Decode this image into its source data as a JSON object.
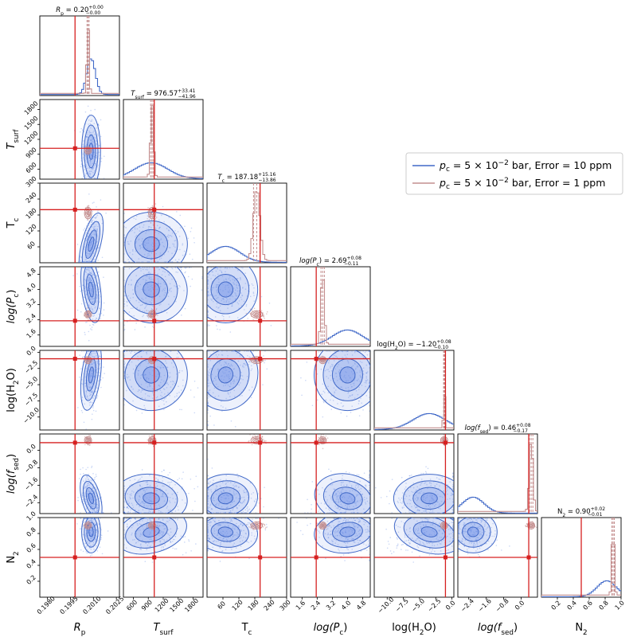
{
  "chart_data": {
    "type": "corner",
    "legend": {
      "placement": "right-upper",
      "entries": [
        {
          "name": "p_c = 5 × 10^-2 bar, Error = 10 ppm",
          "prefix": "p",
          "sub": "c",
          "mid": " = 5 × 10",
          "sup": "−2",
          "suffix": " bar, Error = 10 ppm",
          "color": "#4169c8"
        },
        {
          "name": "p_c = 5 × 10^-2 bar, Error = 1 ppm",
          "prefix": "p",
          "sub": "c",
          "mid": " = 5 × 10",
          "sup": "−2",
          "suffix": " bar, Error = 1 ppm",
          "color": "#c48f8f"
        }
      ]
    },
    "colors": {
      "broad": "#4169c8",
      "narrow": "#c48f8f",
      "truth": "#d62020",
      "fill": "#6b8ee6"
    },
    "parameters": [
      {
        "key": "Rp",
        "label": "R",
        "label_sub": "p",
        "label_italic": true,
        "range": [
          0.1975,
          0.2027
        ],
        "ticks": [
          "0.1980",
          "0.1995",
          "0.2010",
          "0.2025"
        ],
        "tick_values": [
          0.198,
          0.1995,
          0.201,
          0.2025
        ],
        "truth": 0.1998,
        "broad_mean": 0.20085,
        "broad_sd": 0.00028,
        "narrow_mean": 0.20065,
        "narrow_sd": 7e-05,
        "title": {
          "pre": "R",
          "sub": "p",
          "italic": true,
          "value": "0.20",
          "up": "+0.00",
          "down": "−0.00"
        }
      },
      {
        "key": "Tsurf",
        "label": "T",
        "label_sub": "surf",
        "label_italic": true,
        "range": [
          400,
          2000
        ],
        "ticks": [
          "600",
          "900",
          "1200",
          "1500",
          "1800"
        ],
        "tick_values": [
          600,
          900,
          1200,
          1500,
          1800
        ],
        "truth": 1020,
        "broad_mean": 960,
        "broad_sd": 330,
        "narrow_mean": 976.57,
        "narrow_sd": 30,
        "title": {
          "pre": "T",
          "sub": "surf",
          "italic": true,
          "value": "976.57",
          "up": "+33.41",
          "down": "−41.96"
        }
      },
      {
        "key": "Tc",
        "label": "T",
        "label_sub": "c",
        "label_italic": false,
        "range": [
          0,
          300
        ],
        "ticks": [
          "60",
          "120",
          "180",
          "240",
          "300"
        ],
        "tick_values": [
          60,
          120,
          180,
          240,
          300
        ],
        "truth": 200,
        "broad_mean": 70,
        "broad_sd": 55,
        "narrow_mean": 187.18,
        "narrow_sd": 12,
        "title": {
          "pre": "T",
          "sub": "c",
          "italic": true,
          "value": "187.18",
          "up": "+15.16",
          "down": "−13.86"
        }
      },
      {
        "key": "logPc",
        "label": "log(P",
        "label_sub": "c",
        "label_post": ")",
        "label_italic": true,
        "range": [
          1.0,
          5.2
        ],
        "ticks": [
          "1.6",
          "2.4",
          "3.2",
          "4.0",
          "4.8"
        ],
        "tick_values": [
          1.6,
          2.4,
          3.2,
          4.0,
          4.8
        ],
        "truth": 2.35,
        "broad_mean": 4.0,
        "broad_sd": 0.8,
        "narrow_mean": 2.69,
        "narrow_sd": 0.09,
        "title": {
          "pre": "log(P",
          "sub": "c",
          "post": ")",
          "italic": true,
          "value": "2.69",
          "up": "+0.08",
          "down": "−0.11"
        }
      },
      {
        "key": "logH2O",
        "label": "log(H",
        "label_sub": "2",
        "label_post": "O)",
        "label_italic": false,
        "range": [
          -12.0,
          0.3
        ],
        "ticks": [
          "−10.0",
          "−7.5",
          "−5.0",
          "−2.5",
          "0.0"
        ],
        "tick_values": [
          -10.0,
          -7.5,
          -5.0,
          -2.5,
          0.0
        ],
        "truth": -1.0,
        "broad_mean": -3.5,
        "broad_sd": 2.5,
        "narrow_mean": -1.2,
        "narrow_sd": 0.09,
        "title": {
          "pre": "log(H",
          "sub": "2",
          "post": "O)",
          "italic": false,
          "value": "−1.20",
          "up": "+0.08",
          "down": "−0.10"
        }
      },
      {
        "key": "logfsed",
        "label": "log(f",
        "label_sub": "sed",
        "label_post": ")",
        "label_italic": true,
        "range": [
          -2.9,
          0.75
        ],
        "ticks": [
          "−2.4",
          "−1.6",
          "−0.8",
          "0.0"
        ],
        "tick_values": [
          -2.4,
          -1.6,
          -0.8,
          0.0
        ],
        "truth": 0.35,
        "broad_mean": -2.2,
        "broad_sd": 0.5,
        "narrow_mean": 0.46,
        "narrow_sd": 0.08,
        "title": {
          "pre": "log(f",
          "sub": "sed",
          "post": ")",
          "italic": true,
          "value": "0.46",
          "up": "+0.08",
          "down": "−0.17"
        }
      },
      {
        "key": "N2",
        "label": "N",
        "label_sub": "2",
        "label_italic": false,
        "range": [
          0.0,
          1.0
        ],
        "ticks": [
          "0.2",
          "0.4",
          "0.6",
          "0.8",
          "1.0"
        ],
        "tick_values": [
          0.2,
          0.4,
          0.6,
          0.8,
          1.0
        ],
        "truth": 0.5,
        "broad_mean": 0.82,
        "broad_sd": 0.12,
        "narrow_mean": 0.9,
        "narrow_sd": 0.015,
        "title": {
          "pre": "N",
          "sub": "2",
          "italic": false,
          "value": "0.90",
          "up": "+0.02",
          "down": "−0.01"
        }
      }
    ]
  }
}
